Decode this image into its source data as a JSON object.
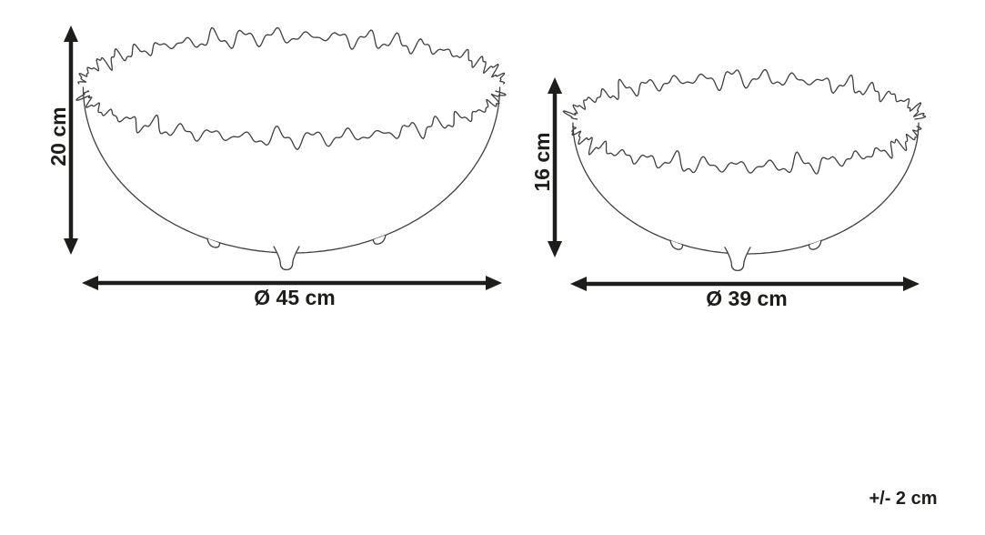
{
  "diagram": {
    "large_bowl": {
      "height_label": "20 cm",
      "diameter_label": "Ø 45 cm"
    },
    "small_bowl": {
      "height_label": "16 cm",
      "diameter_label": "Ø 39 cm"
    },
    "tolerance_label": "+/- 2 cm",
    "colors": {
      "ink": "#1d1d1b",
      "line_art": "#3f3f3f",
      "background": "#ffffff"
    }
  }
}
